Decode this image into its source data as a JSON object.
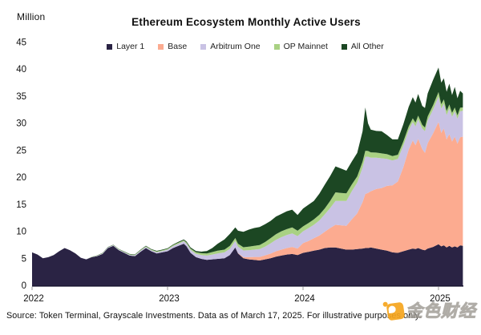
{
  "header": {
    "unit_label": "Million",
    "title": "Ethereum Ecosystem Monthly Active Users"
  },
  "footer": {
    "source_text": "Source: Token Terminal, Grayscale Investments. Data as of March 17, 2025. For illustrative purposes only."
  },
  "watermark": {
    "text": "金色财经"
  },
  "chart_data": {
    "type": "area",
    "stacked": true,
    "title": "Ethereum Ecosystem Monthly Active Users",
    "unit": "Million",
    "ylim": [
      0,
      45
    ],
    "y_ticks": [
      0,
      5,
      10,
      15,
      20,
      25,
      30,
      35,
      40,
      45
    ],
    "x_ticks": [
      {
        "t": 2022,
        "label": "2022"
      },
      {
        "t": 2023,
        "label": "2023"
      },
      {
        "t": 2024,
        "label": "2024"
      },
      {
        "t": 2025,
        "label": "2025"
      }
    ],
    "x_domain": [
      2022.0,
      2025.18
    ],
    "grid": false,
    "legend_position": "top",
    "series": [
      {
        "name": "Layer 1",
        "color": "#2a2344"
      },
      {
        "name": "Base",
        "color": "#fcab90"
      },
      {
        "name": "Arbitrum One",
        "color": "#c9c2e4"
      },
      {
        "name": "OP Mainnet",
        "color": "#a9d183"
      },
      {
        "name": "All Other",
        "color": "#1c4723"
      }
    ],
    "columns": [
      "t",
      "layer1",
      "base",
      "arbitrum_one",
      "op_mainnet",
      "all_other"
    ],
    "points": [
      [
        2022.0,
        6.1,
        0,
        0,
        0,
        0
      ],
      [
        2022.04,
        5.7,
        0,
        0,
        0,
        0
      ],
      [
        2022.08,
        5.0,
        0,
        0,
        0,
        0
      ],
      [
        2022.12,
        5.2,
        0,
        0,
        0,
        0
      ],
      [
        2022.16,
        5.6,
        0,
        0,
        0,
        0
      ],
      [
        2022.2,
        6.3,
        0,
        0,
        0,
        0
      ],
      [
        2022.24,
        6.9,
        0,
        0,
        0,
        0
      ],
      [
        2022.28,
        6.5,
        0,
        0,
        0,
        0
      ],
      [
        2022.32,
        5.9,
        0,
        0,
        0,
        0
      ],
      [
        2022.36,
        5.1,
        0,
        0,
        0,
        0
      ],
      [
        2022.4,
        4.8,
        0,
        0.05,
        0,
        0
      ],
      [
        2022.44,
        5.2,
        0,
        0.05,
        0.05,
        0
      ],
      [
        2022.48,
        5.4,
        0,
        0.05,
        0.05,
        0.05
      ],
      [
        2022.52,
        5.8,
        0,
        0.1,
        0.05,
        0.05
      ],
      [
        2022.56,
        6.9,
        0,
        0.1,
        0.05,
        0.05
      ],
      [
        2022.6,
        7.3,
        0,
        0.1,
        0.05,
        0.05
      ],
      [
        2022.64,
        6.5,
        0,
        0.1,
        0.08,
        0.05
      ],
      [
        2022.68,
        6.0,
        0,
        0.12,
        0.08,
        0.05
      ],
      [
        2022.72,
        5.5,
        0,
        0.12,
        0.1,
        0.08
      ],
      [
        2022.76,
        5.4,
        0,
        0.15,
        0.1,
        0.08
      ],
      [
        2022.8,
        6.2,
        0,
        0.18,
        0.1,
        0.1
      ],
      [
        2022.84,
        6.9,
        0,
        0.2,
        0.12,
        0.1
      ],
      [
        2022.88,
        6.3,
        0,
        0.2,
        0.12,
        0.1
      ],
      [
        2022.92,
        5.9,
        0,
        0.22,
        0.15,
        0.1
      ],
      [
        2022.96,
        6.1,
        0,
        0.25,
        0.15,
        0.1
      ],
      [
        2023.0,
        6.3,
        0,
        0.3,
        0.15,
        0.1
      ],
      [
        2023.04,
        6.9,
        0,
        0.35,
        0.18,
        0.12
      ],
      [
        2023.08,
        7.3,
        0,
        0.4,
        0.2,
        0.15
      ],
      [
        2023.12,
        7.7,
        0,
        0.45,
        0.2,
        0.15
      ],
      [
        2023.14,
        7.2,
        0,
        0.5,
        0.22,
        0.18
      ],
      [
        2023.17,
        6.0,
        0,
        0.55,
        0.25,
        0.2
      ],
      [
        2023.21,
        5.2,
        0,
        0.62,
        0.3,
        0.22
      ],
      [
        2023.25,
        4.9,
        0,
        0.7,
        0.35,
        0.28
      ],
      [
        2023.29,
        4.7,
        0,
        0.8,
        0.4,
        0.45
      ],
      [
        2023.33,
        4.8,
        0,
        0.9,
        0.45,
        0.75
      ],
      [
        2023.37,
        4.9,
        0,
        1.0,
        0.5,
        1.3
      ],
      [
        2023.42,
        5.0,
        0,
        1.1,
        0.5,
        1.9
      ],
      [
        2023.46,
        5.6,
        0,
        1.15,
        0.55,
        2.2
      ],
      [
        2023.5,
        7.0,
        0,
        1.2,
        0.55,
        1.95
      ],
      [
        2023.52,
        5.9,
        0.05,
        1.2,
        0.55,
        2.4
      ],
      [
        2023.56,
        5.0,
        0.2,
        1.25,
        0.6,
        2.85
      ],
      [
        2023.6,
        4.8,
        0.4,
        1.3,
        0.65,
        3.15
      ],
      [
        2023.64,
        4.7,
        0.55,
        1.35,
        0.7,
        3.3
      ],
      [
        2023.68,
        4.6,
        0.65,
        1.45,
        0.75,
        3.35
      ],
      [
        2023.72,
        4.8,
        0.75,
        1.6,
        0.85,
        3.3
      ],
      [
        2023.76,
        5.0,
        0.85,
        1.9,
        0.95,
        3.2
      ],
      [
        2023.8,
        5.3,
        1.0,
        2.1,
        1.05,
        3.25
      ],
      [
        2023.84,
        5.5,
        1.1,
        2.3,
        1.1,
        3.2
      ],
      [
        2023.88,
        5.7,
        1.2,
        2.4,
        1.1,
        3.3
      ],
      [
        2023.92,
        5.8,
        1.3,
        2.5,
        1.1,
        3.3
      ],
      [
        2023.96,
        5.6,
        1.2,
        2.3,
        1.0,
        2.9
      ],
      [
        2024.0,
        6.0,
        1.8,
        2.2,
        0.9,
        3.3
      ],
      [
        2024.04,
        6.2,
        2.0,
        2.35,
        0.95,
        3.4
      ],
      [
        2024.08,
        6.4,
        2.3,
        2.5,
        1.0,
        3.4
      ],
      [
        2024.12,
        6.6,
        2.6,
        2.8,
        1.05,
        3.9
      ],
      [
        2024.16,
        6.9,
        3.0,
        3.2,
        1.1,
        4.4
      ],
      [
        2024.2,
        7.0,
        3.6,
        3.7,
        1.3,
        4.6
      ],
      [
        2024.24,
        7.0,
        4.2,
        4.4,
        1.6,
        4.8
      ],
      [
        2024.28,
        6.8,
        4.3,
        4.5,
        1.5,
        4.5
      ],
      [
        2024.32,
        6.6,
        4.4,
        4.6,
        1.4,
        4.2
      ],
      [
        2024.36,
        6.6,
        5.6,
        5.2,
        1.25,
        4.25
      ],
      [
        2024.4,
        6.7,
        6.6,
        5.7,
        1.15,
        4.35
      ],
      [
        2024.44,
        6.8,
        8.6,
        6.4,
        1.1,
        5.6
      ],
      [
        2024.46,
        6.9,
        10.0,
        6.9,
        1.1,
        8.0
      ],
      [
        2024.48,
        6.9,
        10.2,
        6.7,
        1.05,
        5.1
      ],
      [
        2024.5,
        7.0,
        10.4,
        6.2,
        1.0,
        4.2
      ],
      [
        2024.54,
        6.8,
        11.0,
        5.8,
        0.95,
        4.0
      ],
      [
        2024.58,
        6.6,
        11.4,
        5.5,
        0.9,
        4.1
      ],
      [
        2024.62,
        6.4,
        12.0,
        5.0,
        0.85,
        3.55
      ],
      [
        2024.66,
        6.1,
        12.4,
        4.6,
        0.8,
        3.1
      ],
      [
        2024.7,
        6.0,
        13.2,
        4.2,
        0.75,
        2.85
      ],
      [
        2024.74,
        6.3,
        15.5,
        4.0,
        0.75,
        3.2
      ],
      [
        2024.78,
        6.6,
        18.5,
        3.6,
        0.7,
        3.6
      ],
      [
        2024.81,
        6.8,
        20.0,
        3.4,
        0.7,
        3.9
      ],
      [
        2024.83,
        6.7,
        19.2,
        3.5,
        0.7,
        3.7
      ],
      [
        2024.85,
        6.9,
        20.2,
        3.6,
        0.7,
        4.0
      ],
      [
        2024.88,
        6.6,
        18.6,
        3.8,
        0.7,
        3.5
      ],
      [
        2024.9,
        6.5,
        18.0,
        4.0,
        0.7,
        3.6
      ],
      [
        2024.92,
        6.8,
        19.5,
        4.2,
        0.75,
        4.25
      ],
      [
        2024.96,
        7.1,
        21.0,
        4.4,
        0.8,
        4.7
      ],
      [
        2025.0,
        7.6,
        22.6,
        4.7,
        0.85,
        4.55
      ],
      [
        2025.02,
        7.2,
        21.0,
        4.5,
        0.8,
        4.0
      ],
      [
        2025.04,
        7.4,
        21.6,
        4.6,
        0.8,
        3.9
      ],
      [
        2025.06,
        7.0,
        20.0,
        4.5,
        0.75,
        3.55
      ],
      [
        2025.08,
        7.3,
        20.7,
        4.7,
        0.75,
        3.85
      ],
      [
        2025.1,
        7.0,
        19.6,
        4.6,
        0.7,
        3.3
      ],
      [
        2025.12,
        7.2,
        20.3,
        4.7,
        0.7,
        3.8
      ],
      [
        2025.14,
        7.0,
        19.2,
        4.6,
        0.65,
        3.15
      ],
      [
        2025.16,
        7.4,
        20.0,
        4.8,
        0.65,
        3.15
      ],
      [
        2025.18,
        7.3,
        20.2,
        4.8,
        0.6,
        2.6
      ]
    ]
  }
}
